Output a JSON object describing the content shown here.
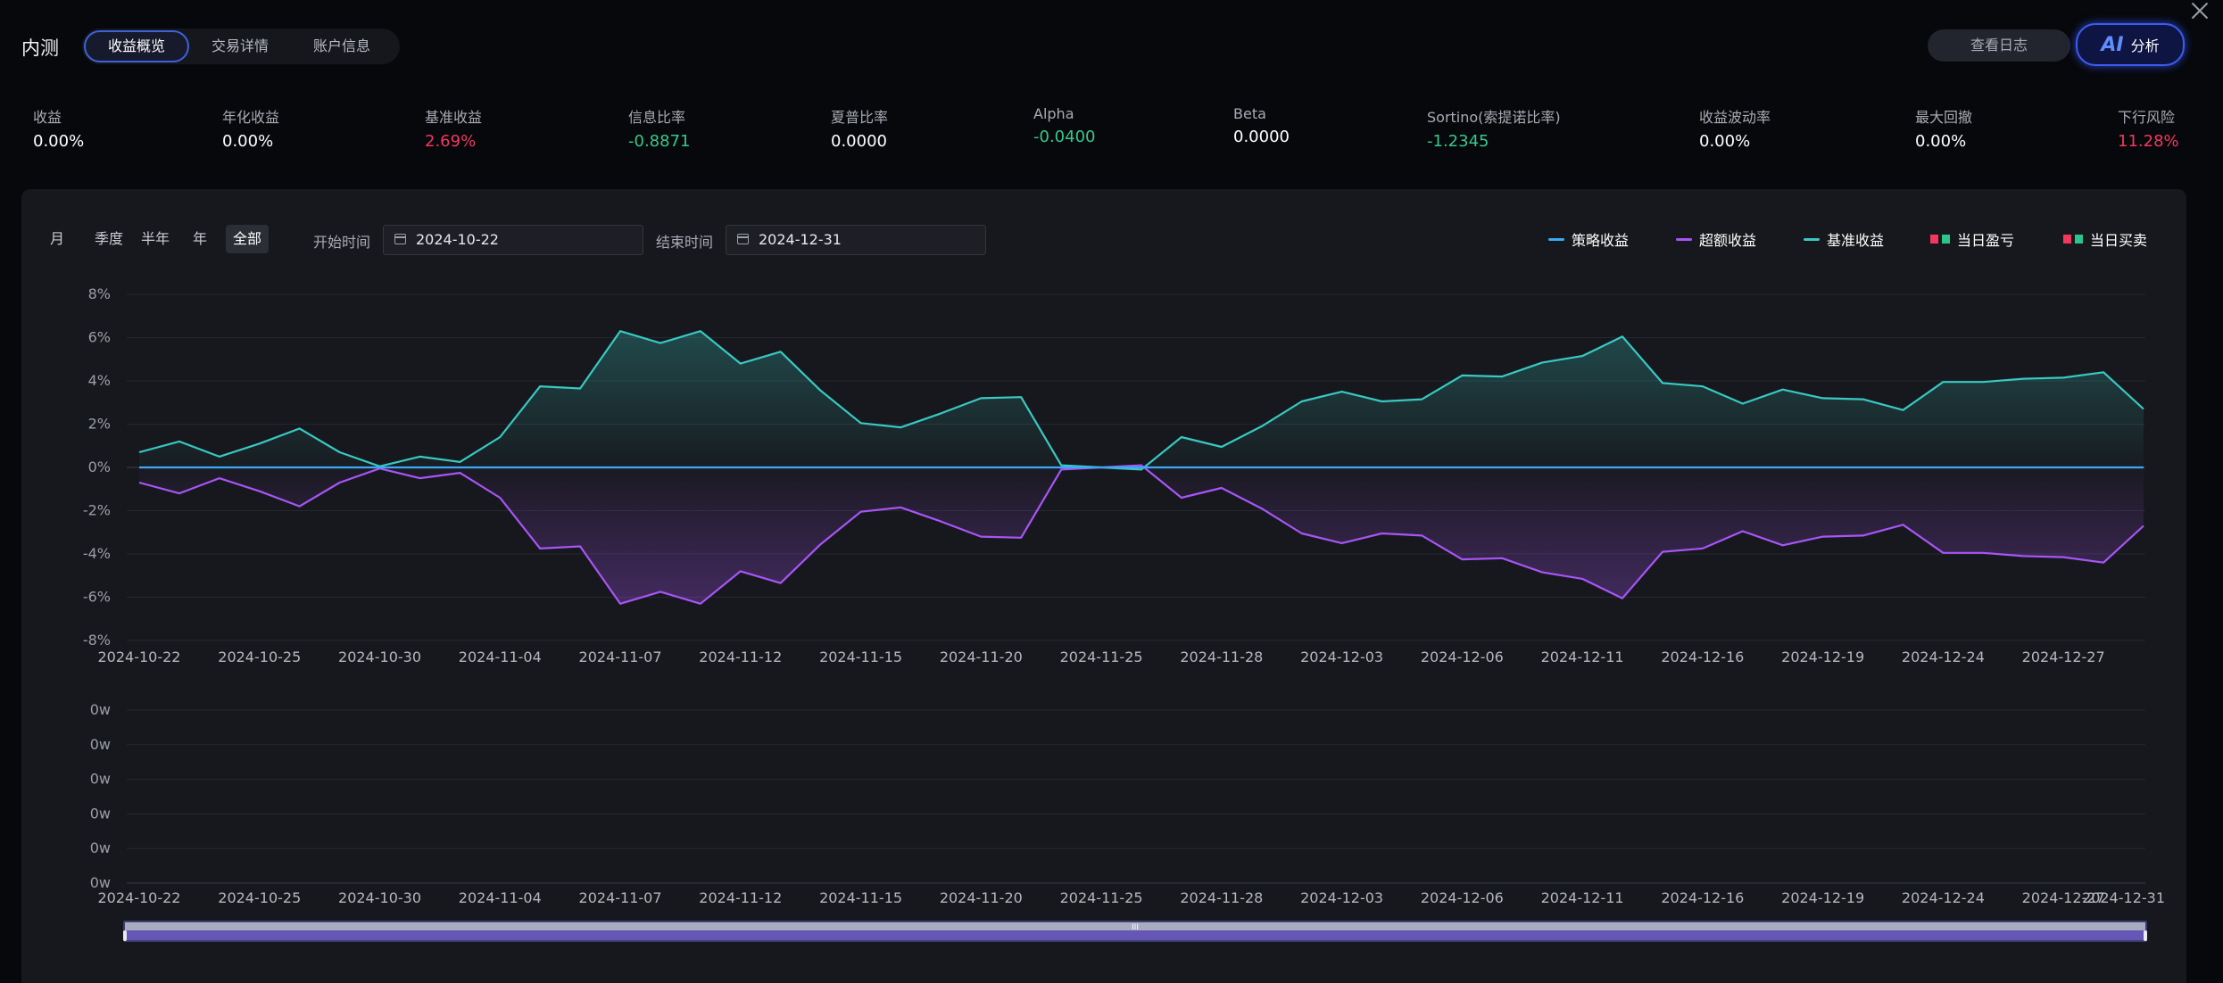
{
  "header": {
    "brand": "内测",
    "tabs": [
      {
        "label": "收益概览",
        "active": true
      },
      {
        "label": "交易详情",
        "active": false
      },
      {
        "label": "账户信息",
        "active": false
      }
    ],
    "log_button": "查看日志",
    "ai_button": {
      "mark": "AI",
      "label": "分析"
    }
  },
  "metrics": [
    {
      "label": "收益",
      "value": "0.00%",
      "tone": "white"
    },
    {
      "label": "年化收益",
      "value": "0.00%",
      "tone": "white"
    },
    {
      "label": "基准收益",
      "value": "2.69%",
      "tone": "red"
    },
    {
      "label": "信息比率",
      "value": "-0.8871",
      "tone": "green"
    },
    {
      "label": "夏普比率",
      "value": "0.0000",
      "tone": "white"
    },
    {
      "label": "Alpha",
      "value": "-0.0400",
      "tone": "green"
    },
    {
      "label": "Beta",
      "value": "0.0000",
      "tone": "white"
    },
    {
      "label": "Sortino(索提诺比率)",
      "value": "-1.2345",
      "tone": "green"
    },
    {
      "label": "收益波动率",
      "value": "0.00%",
      "tone": "white"
    },
    {
      "label": "最大回撤",
      "value": "0.00%",
      "tone": "white"
    },
    {
      "label": "下行风险",
      "value": "11.28%",
      "tone": "red"
    }
  ],
  "filters": {
    "periods": [
      {
        "label": "月",
        "active": false
      },
      {
        "label": "季度",
        "active": false
      },
      {
        "label": "半年",
        "active": false
      },
      {
        "label": "年",
        "active": false
      },
      {
        "label": "全部",
        "active": true
      }
    ],
    "start_label": "开始时间",
    "start_value": "2024-10-22",
    "end_label": "结束时间",
    "end_value": "2024-12-31"
  },
  "legend": [
    {
      "name": "策略收益",
      "kind": "line",
      "colors": [
        "#3ba9f5"
      ]
    },
    {
      "name": "超额收益",
      "kind": "line",
      "colors": [
        "#a855f7"
      ]
    },
    {
      "name": "基准收益",
      "kind": "line",
      "colors": [
        "#38c9c2"
      ]
    },
    {
      "name": "当日盈亏",
      "kind": "squares",
      "colors": [
        "#f2385f",
        "#2bc48a"
      ]
    },
    {
      "name": "当日买卖",
      "kind": "squares",
      "colors": [
        "#f2385f",
        "#2bc48a"
      ]
    }
  ],
  "chart_data": [
    {
      "type": "line",
      "x": [
        "2024-10-22",
        "2024-10-23",
        "2024-10-24",
        "2024-10-25",
        "2024-10-28",
        "2024-10-29",
        "2024-10-30",
        "2024-10-31",
        "2024-11-01",
        "2024-11-04",
        "2024-11-05",
        "2024-11-06",
        "2024-11-07",
        "2024-11-08",
        "2024-11-11",
        "2024-11-12",
        "2024-11-13",
        "2024-11-14",
        "2024-11-15",
        "2024-11-18",
        "2024-11-19",
        "2024-11-20",
        "2024-11-21",
        "2024-11-22",
        "2024-11-25",
        "2024-11-26",
        "2024-11-27",
        "2024-11-28",
        "2024-11-29",
        "2024-12-02",
        "2024-12-03",
        "2024-12-04",
        "2024-12-05",
        "2024-12-06",
        "2024-12-09",
        "2024-12-10",
        "2024-12-11",
        "2024-12-12",
        "2024-12-13",
        "2024-12-16",
        "2024-12-17",
        "2024-12-18",
        "2024-12-19",
        "2024-12-20",
        "2024-12-23",
        "2024-12-24",
        "2024-12-25",
        "2024-12-26",
        "2024-12-27",
        "2024-12-30",
        "2024-12-31"
      ],
      "x_tick_labels": [
        "2024-10-22",
        "2024-10-25",
        "2024-10-30",
        "2024-11-04",
        "2024-11-07",
        "2024-11-12",
        "2024-11-15",
        "2024-11-20",
        "2024-11-25",
        "2024-11-28",
        "2024-12-03",
        "2024-12-06",
        "2024-12-11",
        "2024-12-16",
        "2024-12-19",
        "2024-12-24",
        "2024-12-27"
      ],
      "y_tick_labels": [
        "8%",
        "6%",
        "4%",
        "2%",
        "0%",
        "-2%",
        "-4%",
        "-6%",
        "-8%"
      ],
      "ylim": [
        -8,
        8
      ],
      "grid": true,
      "series": [
        {
          "name": "策略收益",
          "color": "#3ba9f5",
          "values": [
            0,
            0,
            0,
            0,
            0,
            0,
            0,
            0,
            0,
            0,
            0,
            0,
            0,
            0,
            0,
            0,
            0,
            0,
            0,
            0,
            0,
            0,
            0,
            0,
            0,
            0,
            0,
            0,
            0,
            0,
            0,
            0,
            0,
            0,
            0,
            0,
            0,
            0,
            0,
            0,
            0,
            0,
            0,
            0,
            0,
            0,
            0,
            0,
            0,
            0,
            0
          ]
        },
        {
          "name": "基准收益",
          "color": "#38c9c2",
          "values": [
            0.7,
            1.2,
            0.5,
            1.1,
            1.8,
            0.7,
            0.05,
            0.5,
            0.25,
            1.4,
            3.75,
            3.65,
            6.3,
            5.75,
            6.3,
            4.8,
            5.35,
            3.55,
            2.05,
            1.85,
            2.5,
            3.2,
            3.25,
            0.1,
            0,
            -0.1,
            1.4,
            0.95,
            1.9,
            3.05,
            3.5,
            3.05,
            3.15,
            4.25,
            4.2,
            4.85,
            5.15,
            6.05,
            3.9,
            3.75,
            2.95,
            3.6,
            3.2,
            3.15,
            2.65,
            3.95,
            3.95,
            4.1,
            4.15,
            4.4,
            2.7
          ]
        },
        {
          "name": "超额收益",
          "color": "#a855f7",
          "values": [
            -0.7,
            -1.2,
            -0.5,
            -1.1,
            -1.8,
            -0.7,
            -0.05,
            -0.5,
            -0.25,
            -1.4,
            -3.75,
            -3.65,
            -6.3,
            -5.75,
            -6.3,
            -4.8,
            -5.35,
            -3.55,
            -2.05,
            -1.85,
            -2.5,
            -3.2,
            -3.25,
            -0.1,
            0,
            0.1,
            -1.4,
            -0.95,
            -1.9,
            -3.05,
            -3.5,
            -3.05,
            -3.15,
            -4.25,
            -4.2,
            -4.85,
            -5.15,
            -6.05,
            -3.9,
            -3.75,
            -2.95,
            -3.6,
            -3.2,
            -3.15,
            -2.65,
            -3.95,
            -3.95,
            -4.1,
            -4.15,
            -4.4,
            -2.7
          ]
        }
      ]
    },
    {
      "type": "bar",
      "x_tick_labels": [
        "2024-10-22",
        "2024-10-25",
        "2024-10-30",
        "2024-11-04",
        "2024-11-07",
        "2024-11-12",
        "2024-11-15",
        "2024-11-20",
        "2024-11-25",
        "2024-11-28",
        "2024-12-03",
        "2024-12-06",
        "2024-12-11",
        "2024-12-16",
        "2024-12-19",
        "2024-12-24",
        "2024-12-27",
        "2024-12-31"
      ],
      "y_tick_labels": [
        "0w",
        "0w",
        "0w",
        "0w",
        "0w",
        "0w"
      ],
      "grid": true,
      "series": []
    }
  ],
  "slider": {
    "handle": "III"
  }
}
